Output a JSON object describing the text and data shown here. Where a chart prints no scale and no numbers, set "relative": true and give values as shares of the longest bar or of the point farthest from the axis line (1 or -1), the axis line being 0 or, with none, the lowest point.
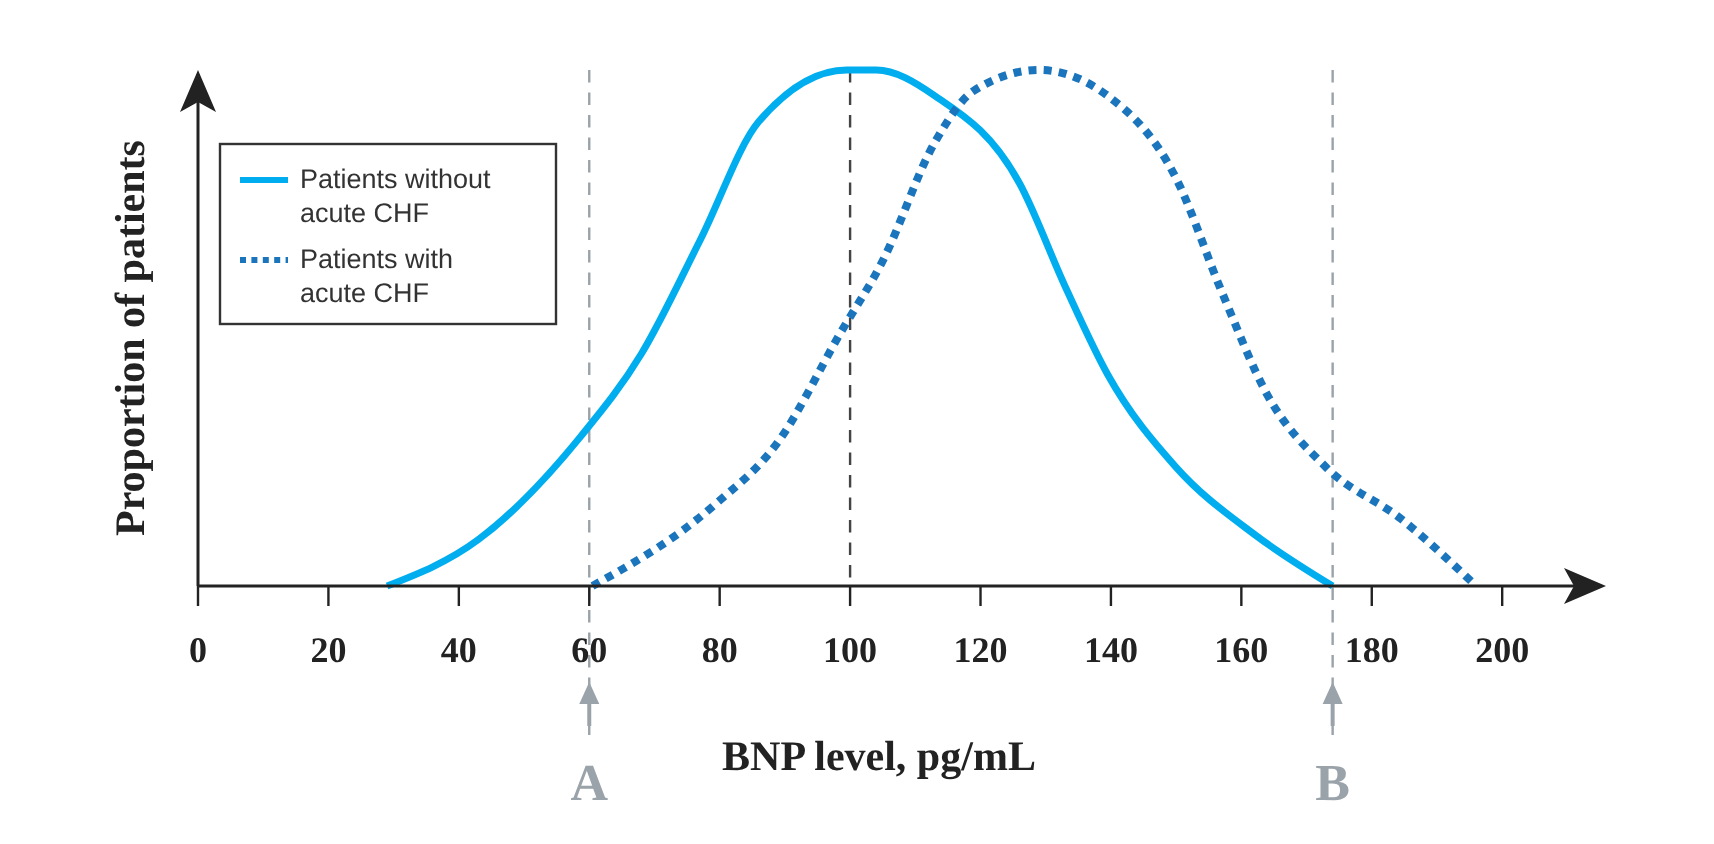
{
  "chart_data": {
    "type": "line",
    "xlabel": "BNP level, pg/mL",
    "ylabel": "Proportion of patients",
    "relative": true,
    "xlim": [
      0,
      215
    ],
    "xticks": [
      0,
      20,
      40,
      60,
      80,
      100,
      120,
      140,
      160,
      180,
      200
    ],
    "tick_labels": "x",
    "legend": "top left",
    "grid": false,
    "series": [
      {
        "name": "Patients without acute CHF",
        "color": "#00aeef",
        "line_style": "solid",
        "x": [
          29,
          43,
          58.7,
          68,
          77,
          86,
          99.5,
          104,
          113,
          126,
          133,
          139.5,
          150,
          162,
          174
        ],
        "values": [
          0,
          0.09,
          0.29,
          0.45,
          0.67,
          0.9,
          1,
          1,
          0.95,
          0.78,
          0.58,
          0.41,
          0.23,
          0.1,
          0
        ]
      },
      {
        "name": "Patients with acute CHF",
        "color": "#1b75bc",
        "line_style": "dotted",
        "x": [
          60.5,
          79,
          89,
          98.5,
          105,
          113,
          119,
          129,
          139.5,
          150,
          157,
          164,
          173,
          184.5,
          196
        ],
        "values": [
          0,
          0.155,
          0.28,
          0.49,
          0.63,
          0.86,
          0.96,
          1,
          0.95,
          0.79,
          0.57,
          0.37,
          0.23,
          0.13,
          0
        ]
      }
    ],
    "ref_lines": [
      {
        "axis": "x",
        "value": 60,
        "label": "A",
        "color": "#9aa3aa",
        "line_style": "dashed"
      },
      {
        "axis": "x",
        "value": 100,
        "label": null,
        "color": "#444444",
        "line_style": "dashed"
      },
      {
        "axis": "x",
        "value": 174,
        "label": "B",
        "color": "#9aa3aa",
        "line_style": "dashed"
      }
    ]
  }
}
